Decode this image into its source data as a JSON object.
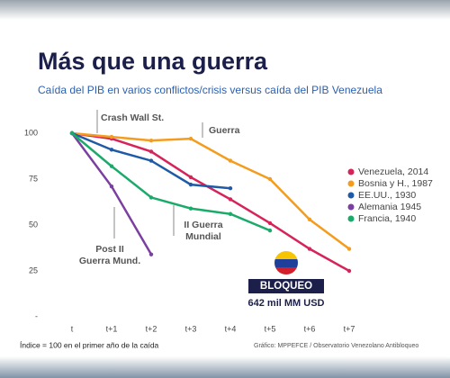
{
  "chart_data": {
    "type": "line",
    "title": "Más que una guerra",
    "subtitle": "Caída del PIB en varios conflictos/crisis versus caída del PIB Venezuela",
    "categories": [
      "t",
      "t+1",
      "t+2",
      "t+3",
      "t+4",
      "t+5",
      "t+6",
      "t+7"
    ],
    "ylim": [
      0,
      100
    ],
    "yticks": [
      {
        "value": 0,
        "label": "-"
      },
      25,
      50,
      75,
      100
    ],
    "series": [
      {
        "name": "Venezuela, 2014",
        "color": "#d6245a",
        "values": [
          100,
          97,
          90,
          76,
          64,
          51,
          37,
          25
        ]
      },
      {
        "name": "Bosnia y H., 1987",
        "color": "#f39c1e",
        "values": [
          100,
          98,
          96,
          97,
          85,
          75,
          53,
          37
        ]
      },
      {
        "name": "EE.UU., 1930",
        "color": "#1f5aa6",
        "values": [
          100,
          91,
          85,
          72,
          70,
          null,
          null,
          null
        ]
      },
      {
        "name": "Alemania 1945",
        "color": "#7b3fa0",
        "values": [
          100,
          71,
          34,
          null,
          null,
          null,
          null,
          null
        ]
      },
      {
        "name": "Francia, 1940",
        "color": "#1aab6a",
        "values": [
          100,
          82,
          65,
          59,
          56,
          47,
          null,
          null
        ]
      }
    ],
    "annotations": [
      [
        "Crash Wall St."
      ],
      [
        "Guerra"
      ],
      [
        "II Guerra",
        "Mundial"
      ],
      [
        "Post II",
        "Guerra Mund."
      ],
      [
        "BLOQUEO"
      ],
      [
        "642 mil MM USD"
      ]
    ],
    "footnote": "Índice = 100 en el primer año de la caída",
    "source": "Gráfico: MPPEFCE / Observatorio Venezolano Antibloqueo"
  }
}
